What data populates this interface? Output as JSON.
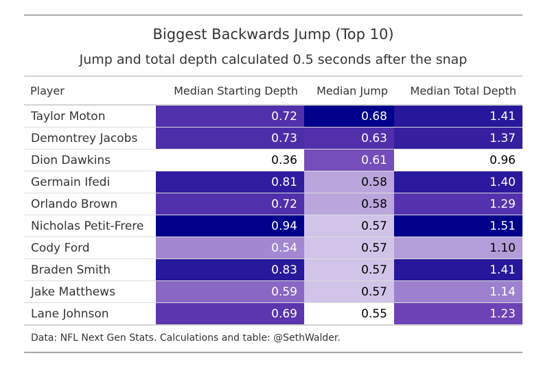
{
  "header": {
    "title": "Biggest Backwards Jump (Top 10)",
    "subtitle": "Jump and total depth calculated 0.5 seconds after the snap"
  },
  "columns": [
    "Player",
    "Median Starting Depth",
    "Median Jump",
    "Median Total Depth"
  ],
  "source_note": "Data: NFL Next Gen Stats. Calculations and table: @SethWalder.",
  "colors": {
    "low": "#ffffff",
    "mid": "#6a3fb5",
    "high": "#00008b",
    "dark_text": "#000000",
    "light_text": "#ffffff"
  },
  "chart_data": {
    "type": "table",
    "title": "Biggest Backwards Jump (Top 10)",
    "subtitle": "Jump and total depth calculated 0.5 seconds after the snap",
    "columns": [
      "Player",
      "Median Starting Depth",
      "Median Jump",
      "Median Total Depth"
    ],
    "rows": [
      {
        "player": "Taylor Moton",
        "starting_depth": "0.72",
        "jump": "0.68",
        "total_depth": "1.41"
      },
      {
        "player": "Demontrey Jacobs",
        "starting_depth": "0.73",
        "jump": "0.63",
        "total_depth": "1.37"
      },
      {
        "player": "Dion Dawkins",
        "starting_depth": "0.36",
        "jump": "0.61",
        "total_depth": "0.96"
      },
      {
        "player": "Germain Ifedi",
        "starting_depth": "0.81",
        "jump": "0.58",
        "total_depth": "1.40"
      },
      {
        "player": "Orlando Brown",
        "starting_depth": "0.72",
        "jump": "0.58",
        "total_depth": "1.29"
      },
      {
        "player": "Nicholas Petit-Frere",
        "starting_depth": "0.94",
        "jump": "0.57",
        "total_depth": "1.51"
      },
      {
        "player": "Cody Ford",
        "starting_depth": "0.54",
        "jump": "0.57",
        "total_depth": "1.10"
      },
      {
        "player": "Braden Smith",
        "starting_depth": "0.83",
        "jump": "0.57",
        "total_depth": "1.41"
      },
      {
        "player": "Jake Matthews",
        "starting_depth": "0.59",
        "jump": "0.57",
        "total_depth": "1.14"
      },
      {
        "player": "Lane Johnson",
        "starting_depth": "0.69",
        "jump": "0.55",
        "total_depth": "1.23"
      }
    ]
  }
}
